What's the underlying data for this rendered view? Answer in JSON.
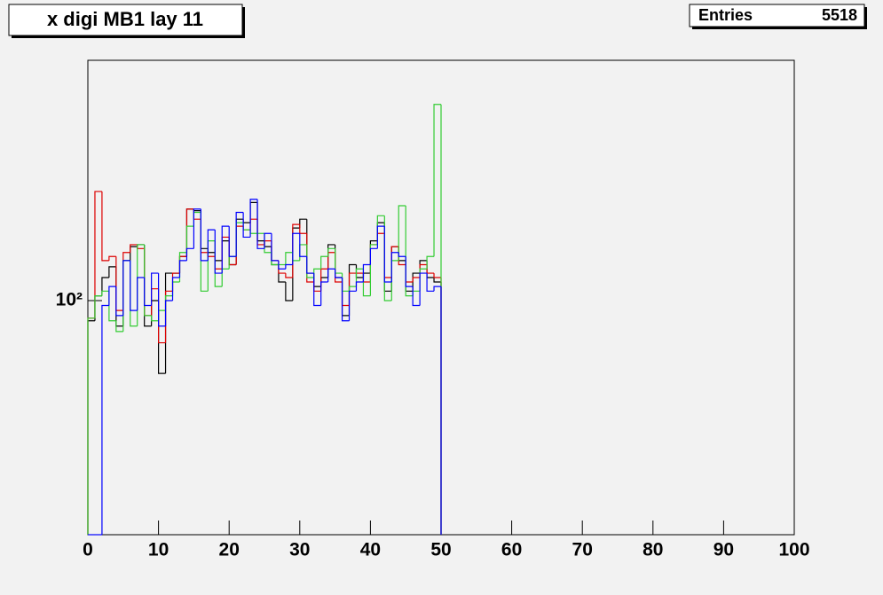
{
  "chart_data": {
    "type": "histogram",
    "title": "x digi MB1 lay 11",
    "stats": {
      "label": "Entries",
      "value": 5518
    },
    "log_y": true,
    "xlim": [
      0,
      100
    ],
    "xticks": [
      0,
      10,
      20,
      30,
      40,
      50,
      60,
      70,
      80,
      90,
      100
    ],
    "ylim": [
      38,
      270
    ],
    "yticks": [
      {
        "value": 100,
        "label": "10²"
      }
    ],
    "bins": [
      0,
      1,
      2,
      3,
      4,
      5,
      6,
      7,
      8,
      9,
      10,
      11,
      12,
      13,
      14,
      15,
      16,
      17,
      18,
      19,
      20,
      21,
      22,
      23,
      24,
      25,
      26,
      27,
      28,
      29,
      30,
      31,
      32,
      33,
      34,
      35,
      36,
      37,
      38,
      39,
      40,
      41,
      42,
      43,
      44,
      45,
      46,
      47,
      48,
      49,
      50
    ],
    "series": [
      {
        "color": "#000000",
        "values": [
          92,
          102,
          110,
          115,
          90,
          118,
          125,
          126,
          90,
          100,
          74,
          112,
          112,
          120,
          146,
          145,
          124,
          122,
          118,
          128,
          116,
          140,
          138,
          150,
          128,
          125,
          116,
          108,
          100,
          135,
          140,
          112,
          106,
          110,
          126,
          110,
          94,
          116,
          110,
          112,
          128,
          138,
          104,
          125,
          118,
          104,
          112,
          118,
          110,
          108
        ]
      },
      {
        "color": "#dd0000",
        "values": [
          93,
          157,
          118,
          120,
          96,
          122,
          126,
          124,
          94,
          105,
          84,
          104,
          112,
          120,
          146,
          140,
          122,
          120,
          114,
          130,
          116,
          136,
          134,
          140,
          126,
          128,
          118,
          112,
          110,
          137,
          132,
          108,
          104,
          114,
          122,
          108,
          98,
          112,
          112,
          108,
          126,
          132,
          110,
          125,
          116,
          108,
          110,
          116,
          112,
          110
        ]
      },
      {
        "color": "#33cc33",
        "values": [
          93,
          102,
          104,
          92,
          88,
          118,
          90,
          126,
          94,
          92,
          96,
          102,
          108,
          122,
          136,
          144,
          104,
          128,
          106,
          114,
          120,
          138,
          134,
          132,
          132,
          122,
          116,
          116,
          122,
          118,
          126,
          110,
          114,
          120,
          124,
          112,
          104,
          106,
          114,
          102,
          126,
          142,
          100,
          118,
          148,
          102,
          104,
          114,
          120,
          225
        ]
      },
      {
        "color": "#0000ff",
        "values": [
          0,
          0,
          98,
          106,
          94,
          118,
          96,
          110,
          98,
          112,
          90,
          100,
          110,
          118,
          124,
          146,
          118,
          134,
          112,
          136,
          120,
          144,
          130,
          152,
          124,
          132,
          118,
          114,
          116,
          132,
          120,
          112,
          98,
          108,
          114,
          110,
          92,
          104,
          108,
          116,
          124,
          136,
          108,
          122,
          120,
          106,
          98,
          112,
          104,
          106
        ]
      }
    ]
  }
}
